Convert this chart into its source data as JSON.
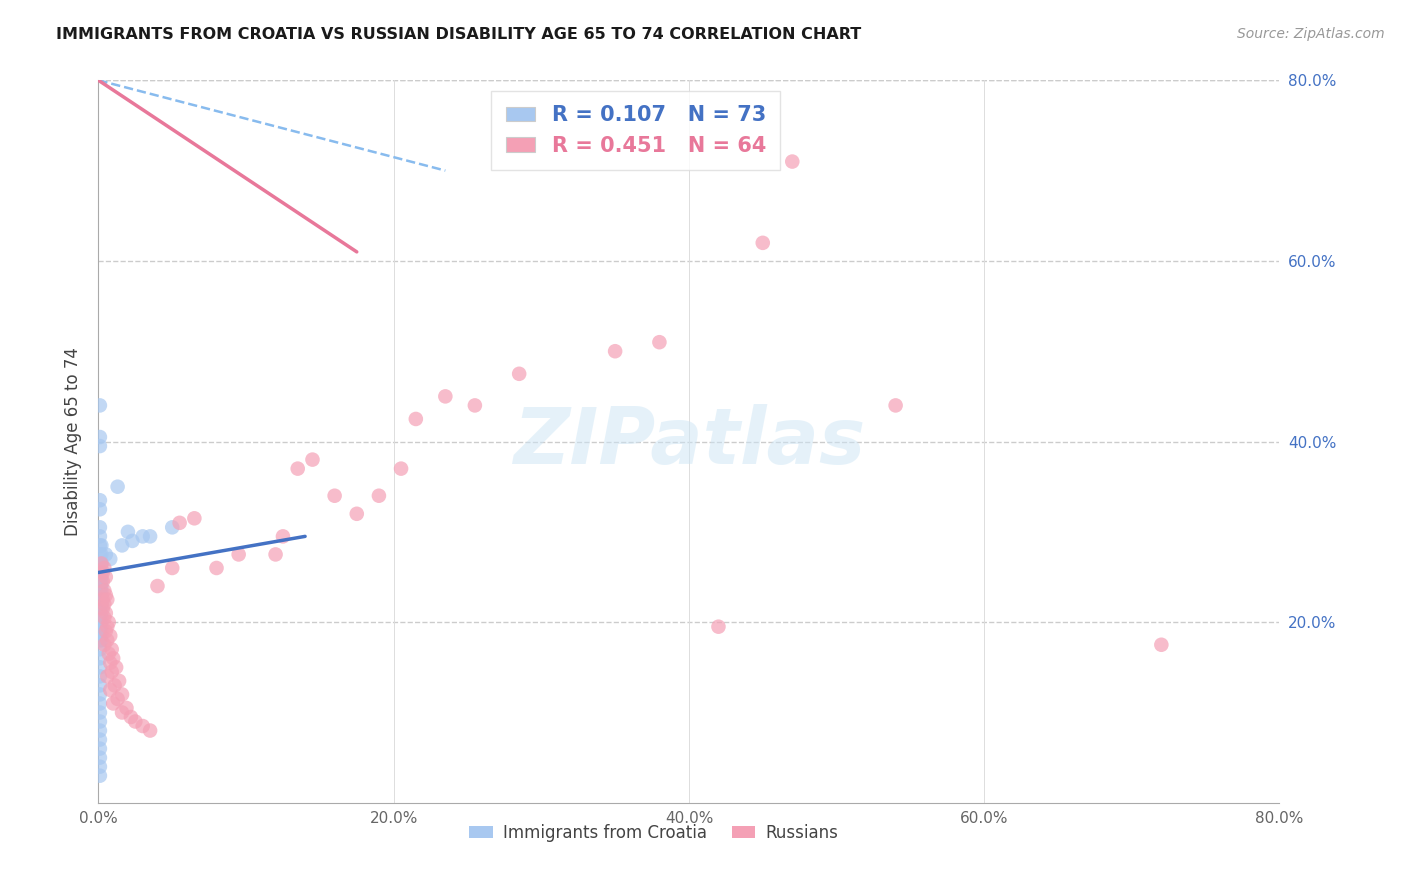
{
  "title": "IMMIGRANTS FROM CROATIA VS RUSSIAN DISABILITY AGE 65 TO 74 CORRELATION CHART",
  "source": "Source: ZipAtlas.com",
  "ylabel": "Disability Age 65 to 74",
  "xlim": [
    0.0,
    0.8
  ],
  "ylim": [
    0.0,
    0.8
  ],
  "xticks": [
    0.0,
    0.2,
    0.4,
    0.6,
    0.8
  ],
  "yticks": [
    0.2,
    0.4,
    0.6,
    0.8
  ],
  "xtick_labels": [
    "0.0%",
    "20.0%",
    "40.0%",
    "60.0%",
    "80.0%"
  ],
  "ytick_labels": [
    "20.0%",
    "40.0%",
    "60.0%",
    "80.0%"
  ],
  "watermark": "ZIPatlas",
  "R_croatia": 0.107,
  "N_croatia": 73,
  "R_russia": 0.451,
  "N_russia": 64,
  "croatia_color": "#A8C8F0",
  "russia_color": "#F4A0B5",
  "croatia_line_color": "#4472C4",
  "russia_line_color": "#E8789A",
  "dashed_line_color": "#88BBEE",
  "croatia_line": [
    [
      0.0,
      0.14
    ],
    [
      0.255,
      0.295
    ]
  ],
  "russia_line": [
    [
      0.0,
      0.175
    ],
    [
      0.8,
      0.61
    ]
  ],
  "dashed_line": [
    [
      0.0,
      0.235
    ],
    [
      0.8,
      0.7
    ]
  ],
  "croatia_scatter": [
    [
      0.001,
      0.44
    ],
    [
      0.001,
      0.405
    ],
    [
      0.001,
      0.395
    ],
    [
      0.001,
      0.335
    ],
    [
      0.001,
      0.325
    ],
    [
      0.001,
      0.305
    ],
    [
      0.001,
      0.295
    ],
    [
      0.001,
      0.285
    ],
    [
      0.001,
      0.275
    ],
    [
      0.002,
      0.285
    ],
    [
      0.002,
      0.275
    ],
    [
      0.001,
      0.265
    ],
    [
      0.001,
      0.26
    ],
    [
      0.002,
      0.265
    ],
    [
      0.002,
      0.26
    ],
    [
      0.001,
      0.255
    ],
    [
      0.001,
      0.25
    ],
    [
      0.002,
      0.255
    ],
    [
      0.002,
      0.25
    ],
    [
      0.001,
      0.245
    ],
    [
      0.001,
      0.24
    ],
    [
      0.002,
      0.245
    ],
    [
      0.002,
      0.24
    ],
    [
      0.001,
      0.235
    ],
    [
      0.001,
      0.23
    ],
    [
      0.002,
      0.235
    ],
    [
      0.002,
      0.23
    ],
    [
      0.001,
      0.225
    ],
    [
      0.001,
      0.22
    ],
    [
      0.002,
      0.225
    ],
    [
      0.002,
      0.22
    ],
    [
      0.001,
      0.215
    ],
    [
      0.001,
      0.21
    ],
    [
      0.002,
      0.215
    ],
    [
      0.002,
      0.21
    ],
    [
      0.001,
      0.205
    ],
    [
      0.001,
      0.2
    ],
    [
      0.002,
      0.205
    ],
    [
      0.002,
      0.2
    ],
    [
      0.001,
      0.195
    ],
    [
      0.001,
      0.19
    ],
    [
      0.002,
      0.195
    ],
    [
      0.002,
      0.19
    ],
    [
      0.001,
      0.185
    ],
    [
      0.001,
      0.18
    ],
    [
      0.002,
      0.185
    ],
    [
      0.002,
      0.18
    ],
    [
      0.001,
      0.17
    ],
    [
      0.001,
      0.16
    ],
    [
      0.001,
      0.15
    ],
    [
      0.001,
      0.14
    ],
    [
      0.001,
      0.13
    ],
    [
      0.001,
      0.12
    ],
    [
      0.001,
      0.11
    ],
    [
      0.001,
      0.1
    ],
    [
      0.001,
      0.09
    ],
    [
      0.001,
      0.08
    ],
    [
      0.001,
      0.07
    ],
    [
      0.001,
      0.06
    ],
    [
      0.001,
      0.05
    ],
    [
      0.001,
      0.04
    ],
    [
      0.001,
      0.03
    ],
    [
      0.005,
      0.275
    ],
    [
      0.008,
      0.27
    ],
    [
      0.013,
      0.35
    ],
    [
      0.016,
      0.285
    ],
    [
      0.02,
      0.3
    ],
    [
      0.023,
      0.29
    ],
    [
      0.03,
      0.295
    ],
    [
      0.035,
      0.295
    ],
    [
      0.05,
      0.305
    ]
  ],
  "russia_scatter": [
    [
      0.002,
      0.265
    ],
    [
      0.003,
      0.255
    ],
    [
      0.004,
      0.26
    ],
    [
      0.003,
      0.245
    ],
    [
      0.005,
      0.25
    ],
    [
      0.004,
      0.235
    ],
    [
      0.003,
      0.225
    ],
    [
      0.005,
      0.23
    ],
    [
      0.004,
      0.22
    ],
    [
      0.006,
      0.225
    ],
    [
      0.003,
      0.215
    ],
    [
      0.005,
      0.21
    ],
    [
      0.004,
      0.205
    ],
    [
      0.007,
      0.2
    ],
    [
      0.006,
      0.195
    ],
    [
      0.005,
      0.19
    ],
    [
      0.008,
      0.185
    ],
    [
      0.006,
      0.18
    ],
    [
      0.004,
      0.175
    ],
    [
      0.009,
      0.17
    ],
    [
      0.007,
      0.165
    ],
    [
      0.01,
      0.16
    ],
    [
      0.008,
      0.155
    ],
    [
      0.012,
      0.15
    ],
    [
      0.009,
      0.145
    ],
    [
      0.006,
      0.14
    ],
    [
      0.014,
      0.135
    ],
    [
      0.011,
      0.13
    ],
    [
      0.008,
      0.125
    ],
    [
      0.016,
      0.12
    ],
    [
      0.013,
      0.115
    ],
    [
      0.01,
      0.11
    ],
    [
      0.019,
      0.105
    ],
    [
      0.016,
      0.1
    ],
    [
      0.022,
      0.095
    ],
    [
      0.025,
      0.09
    ],
    [
      0.03,
      0.085
    ],
    [
      0.035,
      0.08
    ],
    [
      0.04,
      0.24
    ],
    [
      0.05,
      0.26
    ],
    [
      0.055,
      0.31
    ],
    [
      0.065,
      0.315
    ],
    [
      0.08,
      0.26
    ],
    [
      0.095,
      0.275
    ],
    [
      0.12,
      0.275
    ],
    [
      0.125,
      0.295
    ],
    [
      0.135,
      0.37
    ],
    [
      0.145,
      0.38
    ],
    [
      0.16,
      0.34
    ],
    [
      0.175,
      0.32
    ],
    [
      0.19,
      0.34
    ],
    [
      0.205,
      0.37
    ],
    [
      0.215,
      0.425
    ],
    [
      0.235,
      0.45
    ],
    [
      0.255,
      0.44
    ],
    [
      0.285,
      0.475
    ],
    [
      0.35,
      0.5
    ],
    [
      0.38,
      0.51
    ],
    [
      0.42,
      0.195
    ],
    [
      0.45,
      0.62
    ],
    [
      0.47,
      0.71
    ],
    [
      0.54,
      0.44
    ],
    [
      0.72,
      0.175
    ]
  ]
}
